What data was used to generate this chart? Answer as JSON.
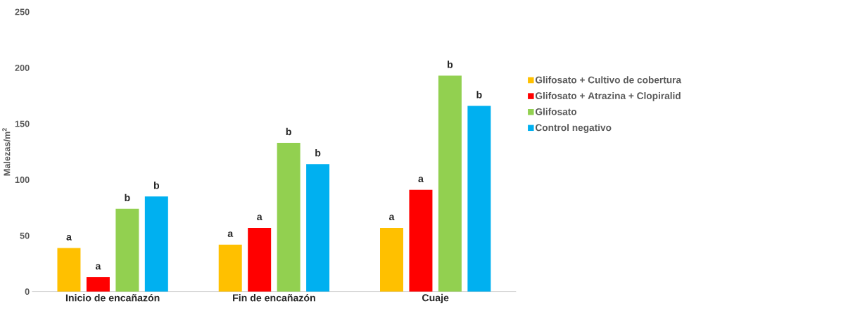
{
  "chart_data": {
    "type": "bar",
    "ylabel": "Malezas/m$^{2}$",
    "categories": [
      "Inicio de encañazón",
      "Fin de encañazón",
      "Cuaje"
    ],
    "series": [
      {
        "name": "Glifosato + Cultivo de cobertura",
        "color": "#ffc000",
        "values": [
          39,
          42,
          57
        ],
        "value_labels": [
          "a",
          "a",
          "a"
        ]
      },
      {
        "name": "Glifosato + Atrazina + Clopiralid",
        "color": "#ff0000",
        "values": [
          13,
          57,
          91
        ],
        "value_labels": [
          "a",
          "a",
          "a"
        ]
      },
      {
        "name": "Glifosato",
        "color": "#92d050",
        "values": [
          74,
          133,
          193
        ],
        "value_labels": [
          "b",
          "b",
          "b"
        ]
      },
      {
        "name": "Control negativo",
        "color": "#00b0f0",
        "values": [
          85,
          114,
          166
        ],
        "value_labels": [
          "b",
          "b",
          "b"
        ]
      }
    ],
    "ylim": [
      0,
      250
    ],
    "yticks": [
      0,
      50,
      100,
      150,
      200,
      250
    ],
    "grid": false,
    "legend": "right"
  }
}
